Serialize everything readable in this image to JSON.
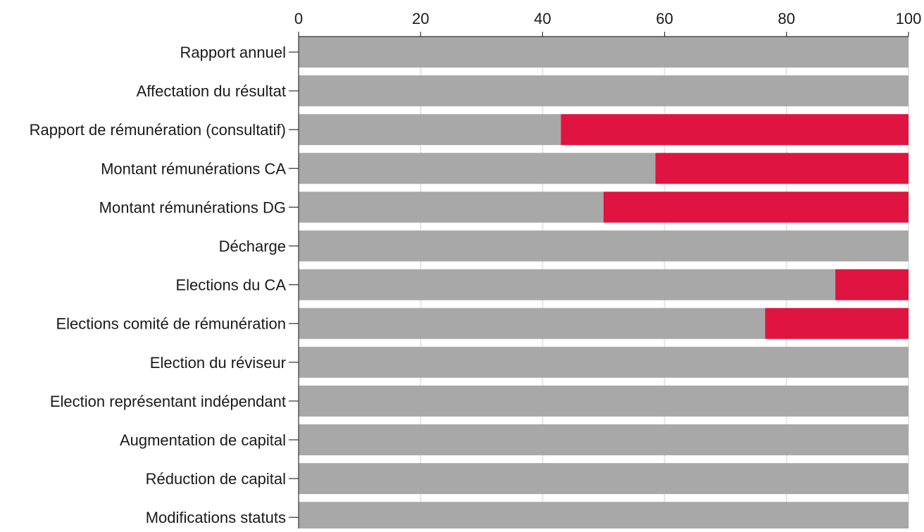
{
  "chart_data": {
    "type": "bar",
    "orientation": "horizontal",
    "stacked": true,
    "title": "",
    "xlabel": "",
    "ylabel": "",
    "xlim": [
      0,
      100
    ],
    "x_ticks": [
      "0",
      "20",
      "40",
      "60",
      "80",
      "100"
    ],
    "x_tick_values": [
      0,
      20,
      40,
      60,
      80,
      100
    ],
    "x_axis_position": "top",
    "grid": true,
    "legend": "none",
    "categories": [
      "Rapport annuel",
      "Affectation du résultat",
      "Rapport de rémunération (consultatif)",
      "Montant rémunérations CA",
      "Montant rémunérations DG",
      "Décharge",
      "Elections du CA",
      "Elections comité de rémunération",
      "Election du réviseur",
      "Election représentant indépendant",
      "Augmentation de capital",
      "Réduction de capital",
      "Modifications statuts"
    ],
    "series": [
      {
        "color": "#a8a8a8",
        "values": [
          100,
          100,
          43,
          58.5,
          50,
          100,
          88,
          76.5,
          100,
          100,
          100,
          100,
          100
        ]
      },
      {
        "color": "#df1440",
        "values": [
          0,
          0,
          57,
          41.5,
          50,
          0,
          12,
          23.5,
          0,
          0,
          0,
          0,
          0
        ]
      }
    ],
    "colors": {
      "background": "#ffffff",
      "gridline": "#e6e6e6",
      "axis": "#333333",
      "text": "#1a1a1a"
    }
  }
}
